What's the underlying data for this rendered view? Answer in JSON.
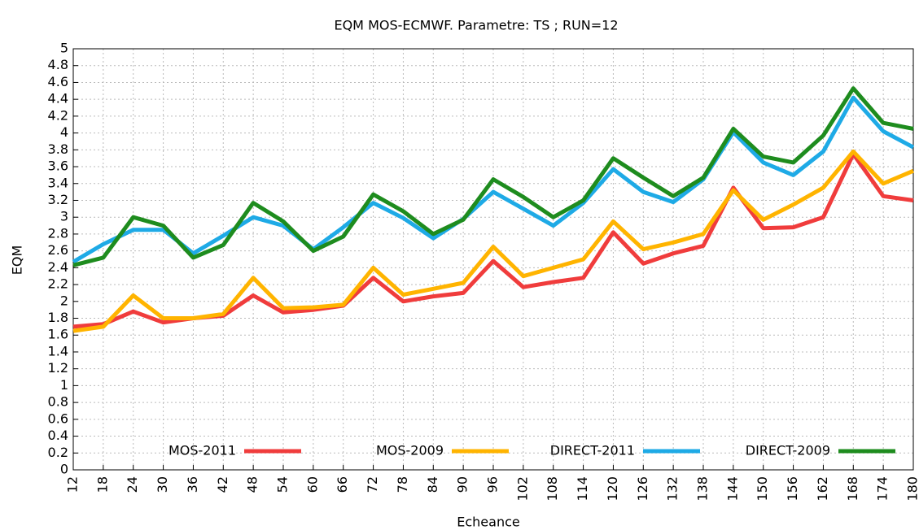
{
  "chart_data": {
    "type": "line",
    "title": "EQM MOS-ECMWF. Parametre: TS ; RUN=12",
    "x_label": "Echeance",
    "y_label": "EQM",
    "x": [
      12,
      18,
      24,
      30,
      36,
      42,
      48,
      54,
      60,
      66,
      72,
      78,
      84,
      90,
      96,
      102,
      108,
      114,
      120,
      126,
      132,
      138,
      144,
      150,
      156,
      162,
      168,
      174,
      180
    ],
    "xlim": [
      12,
      180
    ],
    "xticks": [
      12,
      18,
      24,
      30,
      36,
      42,
      48,
      54,
      60,
      66,
      72,
      78,
      84,
      90,
      96,
      102,
      108,
      114,
      120,
      126,
      132,
      138,
      144,
      150,
      156,
      162,
      168,
      174,
      180
    ],
    "ylim": [
      0,
      5
    ],
    "yticks": [
      0,
      0.2,
      0.4,
      0.6,
      0.8,
      1,
      1.2,
      1.4,
      1.6,
      1.8,
      2,
      2.2,
      2.4,
      2.6,
      2.8,
      3,
      3.2,
      3.4,
      3.6,
      3.8,
      4,
      4.2,
      4.4,
      4.6,
      4.8,
      5
    ],
    "grid": true,
    "legend": "bottom",
    "series": [
      {
        "name": "MOS-2011",
        "color": "#f03c3c",
        "values": [
          1.7,
          1.73,
          1.88,
          1.75,
          1.8,
          1.83,
          2.07,
          1.87,
          1.9,
          1.95,
          2.28,
          2.0,
          2.06,
          2.1,
          2.48,
          2.17,
          2.23,
          2.28,
          2.82,
          2.45,
          2.57,
          2.66,
          3.35,
          2.87,
          2.88,
          3.0,
          3.75,
          3.25,
          3.2
        ]
      },
      {
        "name": "MOS-2009",
        "color": "#ffb400",
        "values": [
          1.65,
          1.7,
          2.07,
          1.8,
          1.8,
          1.85,
          2.28,
          1.92,
          1.93,
          1.96,
          2.4,
          2.08,
          2.15,
          2.22,
          2.65,
          2.3,
          2.4,
          2.5,
          2.95,
          2.62,
          2.7,
          2.8,
          3.32,
          2.97,
          3.15,
          3.35,
          3.78,
          3.4,
          3.55
        ]
      },
      {
        "name": "DIRECT-2011",
        "color": "#1eaae6",
        "values": [
          2.47,
          2.68,
          2.85,
          2.85,
          2.57,
          2.78,
          3.0,
          2.9,
          2.62,
          2.88,
          3.17,
          2.99,
          2.75,
          2.98,
          3.3,
          3.1,
          2.9,
          3.17,
          3.57,
          3.3,
          3.18,
          3.45,
          4.01,
          3.65,
          3.5,
          3.78,
          4.42,
          4.02,
          3.83
        ]
      },
      {
        "name": "DIRECT-2009",
        "color": "#1e8c1e",
        "values": [
          2.43,
          2.52,
          3.0,
          2.9,
          2.52,
          2.67,
          3.17,
          2.95,
          2.6,
          2.77,
          3.27,
          3.07,
          2.8,
          2.97,
          3.45,
          3.24,
          3.0,
          3.2,
          3.7,
          3.47,
          3.25,
          3.47,
          4.05,
          3.72,
          3.65,
          3.97,
          4.53,
          4.12,
          4.05
        ]
      }
    ]
  }
}
